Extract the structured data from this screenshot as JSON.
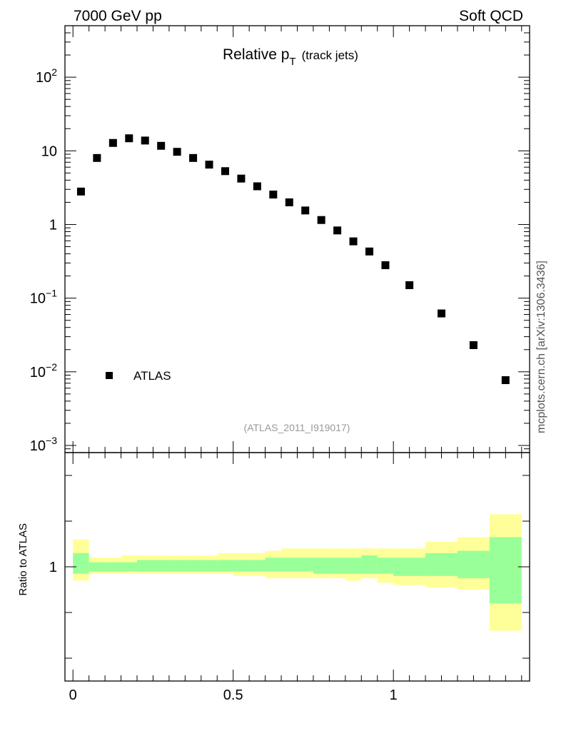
{
  "header": {
    "left": "7000 GeV pp",
    "right": "Soft QCD"
  },
  "side_label": "mcplots.cern.ch [arXiv:1306.3436]",
  "chart_data": [
    {
      "type": "scatter",
      "title": "Relative p",
      "title_sub": "T",
      "title_suffix": "(track jets)",
      "analysis_label": "(ATLAS_2011_I919017)",
      "yscale": "log",
      "ylim": [
        0.0008,
        500
      ],
      "xlim": [
        -0.025,
        1.425
      ],
      "y_tick_labels": [
        {
          "base": "10",
          "exp": "2"
        },
        {
          "base": "10",
          "exp": ""
        },
        {
          "base": "1",
          "exp": ""
        },
        {
          "base": "10",
          "exp": "−1"
        },
        {
          "base": "10",
          "exp": "−2"
        },
        {
          "base": "10",
          "exp": "−3"
        }
      ],
      "legend": {
        "position": "lower-left",
        "label": "ATLAS"
      },
      "series": [
        {
          "name": "ATLAS",
          "color": "#000000",
          "x": [
            0.025,
            0.075,
            0.125,
            0.175,
            0.225,
            0.275,
            0.325,
            0.375,
            0.425,
            0.475,
            0.525,
            0.575,
            0.625,
            0.675,
            0.725,
            0.775,
            0.825,
            0.875,
            0.925,
            0.975,
            1.05,
            1.15,
            1.25,
            1.35
          ],
          "y": [
            2.8,
            8.0,
            12.8,
            14.8,
            13.8,
            11.7,
            9.7,
            8.0,
            6.5,
            5.3,
            4.2,
            3.3,
            2.55,
            2.0,
            1.55,
            1.15,
            0.83,
            0.59,
            0.43,
            0.28,
            0.15,
            0.062,
            0.023,
            0.0077
          ]
        }
      ]
    },
    {
      "type": "area",
      "ylabel": "Ratio to ATLAS",
      "xlim": [
        -0.025,
        1.425
      ],
      "ylim": [
        0.5,
        1.5
      ],
      "x_tick_labels": [
        "0",
        "0.5",
        "1"
      ],
      "y_tick_labels": [
        "1"
      ],
      "bands": [
        {
          "name": "total",
          "color": "#ffff99",
          "edges": [
            0,
            0.05,
            0.1,
            0.15,
            0.2,
            0.25,
            0.3,
            0.35,
            0.4,
            0.45,
            0.5,
            0.55,
            0.6,
            0.65,
            0.7,
            0.75,
            0.8,
            0.85,
            0.9,
            0.95,
            1.0,
            1.1,
            1.2,
            1.3,
            1.4
          ],
          "low": [
            0.94,
            0.97,
            0.97,
            0.97,
            0.97,
            0.97,
            0.97,
            0.97,
            0.97,
            0.97,
            0.96,
            0.96,
            0.95,
            0.95,
            0.95,
            0.95,
            0.95,
            0.94,
            0.95,
            0.93,
            0.92,
            0.91,
            0.9,
            0.72
          ],
          "high": [
            1.12,
            1.04,
            1.04,
            1.05,
            1.05,
            1.05,
            1.05,
            1.05,
            1.05,
            1.06,
            1.06,
            1.06,
            1.07,
            1.08,
            1.08,
            1.08,
            1.08,
            1.08,
            1.08,
            1.08,
            1.08,
            1.11,
            1.13,
            1.23
          ]
        },
        {
          "name": "stat",
          "color": "#99ff99",
          "edges": [
            0,
            0.05,
            0.1,
            0.15,
            0.2,
            0.25,
            0.3,
            0.35,
            0.4,
            0.45,
            0.5,
            0.55,
            0.6,
            0.65,
            0.7,
            0.75,
            0.8,
            0.85,
            0.9,
            0.95,
            1.0,
            1.1,
            1.2,
            1.3,
            1.4
          ],
          "low": [
            0.97,
            0.98,
            0.98,
            0.98,
            0.98,
            0.98,
            0.98,
            0.98,
            0.98,
            0.98,
            0.98,
            0.98,
            0.98,
            0.98,
            0.98,
            0.97,
            0.97,
            0.97,
            0.97,
            0.97,
            0.96,
            0.96,
            0.95,
            0.84
          ],
          "high": [
            1.06,
            1.02,
            1.02,
            1.02,
            1.03,
            1.03,
            1.03,
            1.03,
            1.03,
            1.03,
            1.03,
            1.03,
            1.04,
            1.04,
            1.04,
            1.04,
            1.04,
            1.04,
            1.05,
            1.04,
            1.04,
            1.06,
            1.07,
            1.13
          ]
        }
      ]
    }
  ]
}
